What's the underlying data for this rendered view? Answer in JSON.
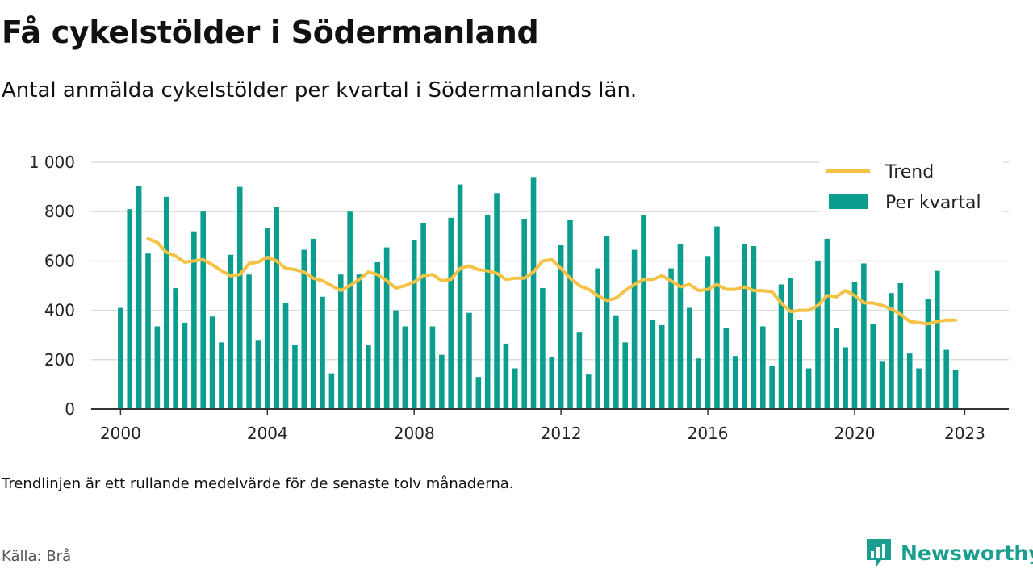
{
  "title": "Få cykelstölder i Södermanland",
  "subtitle": "Antal anmälda cykelstölder per kvartal i Södermanlands län.",
  "footnote": "Trendlinjen är ett rullande medelvärde för de senaste tolv månaderna.",
  "source": "Källa: Brå",
  "logo_text": "Newsworthy",
  "colors": {
    "bars": "#0b9e8f",
    "trend": "#f6c244",
    "grid": "#dddddd",
    "axis": "#333333",
    "logo": "#1a9e8f"
  },
  "chart_data": {
    "type": "bar",
    "x_start": 2000,
    "x_step": 0.25,
    "xlim": [
      1999.2,
      2024.2
    ],
    "ylim": [
      0,
      1000
    ],
    "x_ticks": [
      2000,
      2004,
      2008,
      2012,
      2016,
      2020,
      2023
    ],
    "x_tick_labels": [
      "2000",
      "2004",
      "2008",
      "2012",
      "2016",
      "2020",
      "2023"
    ],
    "y_ticks": [
      0,
      200,
      400,
      600,
      800,
      1000
    ],
    "y_tick_labels": [
      "0",
      "200",
      "400",
      "600",
      "800",
      "1 000"
    ],
    "grid": true,
    "legend_position": "top-right",
    "series": [
      {
        "name": "Per kvartal",
        "type": "bar",
        "values": [
          410,
          810,
          905,
          630,
          335,
          860,
          490,
          350,
          720,
          800,
          375,
          270,
          625,
          900,
          545,
          280,
          735,
          820,
          430,
          260,
          645,
          690,
          455,
          145,
          545,
          800,
          545,
          260,
          595,
          655,
          400,
          335,
          685,
          755,
          335,
          220,
          775,
          910,
          390,
          130,
          785,
          875,
          265,
          165,
          770,
          940,
          490,
          210,
          665,
          765,
          310,
          140,
          570,
          700,
          380,
          270,
          645,
          785,
          360,
          340,
          570,
          670,
          410,
          205,
          620,
          740,
          330,
          215,
          670,
          660,
          335,
          175,
          505,
          530,
          360,
          165,
          600,
          690,
          330,
          250,
          515,
          590,
          345,
          195,
          470,
          510,
          225,
          165,
          445,
          560,
          240,
          160
        ]
      },
      {
        "name": "Trend",
        "type": "line",
        "values": [
          null,
          null,
          null,
          690,
          675,
          635,
          620,
          595,
          600,
          605,
          585,
          560,
          540,
          545,
          590,
          595,
          615,
          600,
          570,
          565,
          555,
          530,
          520,
          500,
          480,
          500,
          525,
          555,
          545,
          520,
          490,
          500,
          515,
          540,
          545,
          520,
          525,
          570,
          580,
          565,
          560,
          550,
          525,
          530,
          530,
          555,
          600,
          605,
          570,
          530,
          500,
          485,
          460,
          440,
          450,
          480,
          505,
          525,
          525,
          540,
          520,
          495,
          505,
          480,
          485,
          505,
          485,
          485,
          495,
          480,
          480,
          475,
          430,
          395,
          400,
          400,
          420,
          460,
          455,
          480,
          460,
          430,
          430,
          420,
          405,
          385,
          355,
          350,
          345,
          355,
          360,
          360
        ]
      }
    ]
  }
}
